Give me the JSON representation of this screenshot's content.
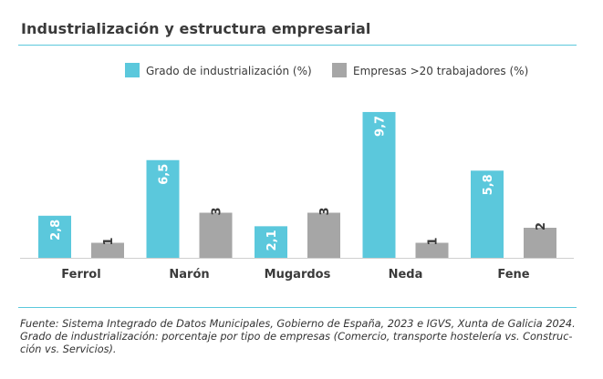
{
  "title": "Industrialización y estructura empresarial",
  "colors": {
    "rule": "#5bc8dc",
    "series_1": "#5bc8dc",
    "series_2": "#a6a6a6",
    "text": "#3a3a3a"
  },
  "chart_data": {
    "type": "bar",
    "categories": [
      "Ferrol",
      "Narón",
      "Mugardos",
      "Neda",
      "Fene"
    ],
    "series": [
      {
        "name": "Grado de industrialización (%)",
        "values": [
          2.8,
          6.5,
          2.1,
          9.7,
          5.8
        ],
        "labels": [
          "2,8",
          "6,5",
          "2,1",
          "9,7",
          "5,8"
        ],
        "color": "#5bc8dc"
      },
      {
        "name": "Empresas >20 trabajadores (%)",
        "values": [
          1,
          3,
          3,
          1,
          2
        ],
        "labels": [
          "1",
          "3",
          "3",
          "1",
          "2"
        ],
        "color": "#a6a6a6"
      }
    ],
    "ylim": [
      0,
      10
    ],
    "legend": "top",
    "grid": false,
    "data_label_rotation": "vertical"
  },
  "footnote": {
    "line1": "Fuente: Sistema Integrado de Datos Municipales, Gobierno de España, 2023 e IGVS, Xunta de Galicia 2024.",
    "line2": "Grado de industrialización: porcentaje por tipo de empresas (Comercio, transporte hostelería vs. Construc-",
    "line3": "ción vs. Servicios)."
  }
}
